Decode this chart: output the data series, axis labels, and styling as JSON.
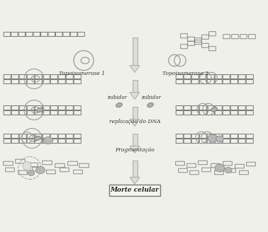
{
  "bg_color": "#f0f0eb",
  "text_color": "#333333",
  "labels": {
    "topo1": "Topoisomerase 1",
    "topo2": "Topoisomerase 2",
    "inibidor1": "inibidor",
    "inibidor2": "inibidor",
    "replicacao": "replicação do DNA",
    "fragmentacao": "Fragmentação",
    "morte": "Morte celular"
  },
  "chain_color": "#777777",
  "enzyme_color": "#999999",
  "arrow_fill": "#ddddd0",
  "arrow_edge": "#aaaaaa"
}
